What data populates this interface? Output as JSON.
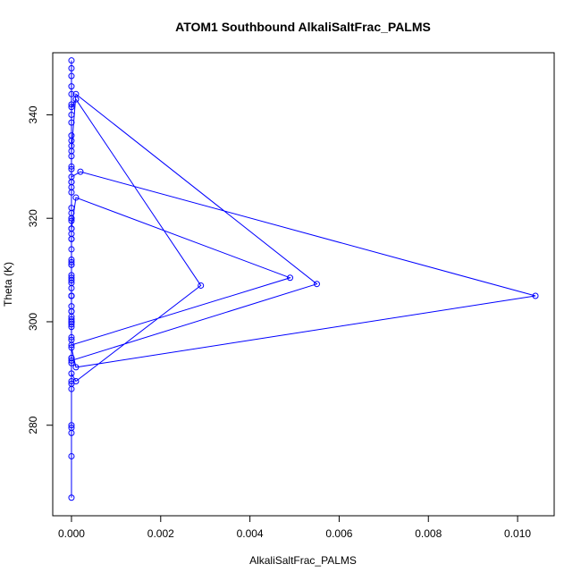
{
  "chart_data": {
    "type": "line",
    "title": "ATOM1 Southbound AlkaliSaltFrac_PALMS",
    "xlabel": "AlkaliSaltFrac_PALMS",
    "ylabel": "Theta (K)",
    "xlim": [
      -0.00042,
      0.01082
    ],
    "ylim": [
      262.5,
      352.0
    ],
    "xticks": [
      0.0,
      0.002,
      0.004,
      0.006,
      0.008,
      0.01
    ],
    "xtick_labels": [
      "0.000",
      "0.002",
      "0.004",
      "0.006",
      "0.008",
      "0.010"
    ],
    "yticks": [
      280,
      300,
      320,
      340
    ],
    "ytick_labels": [
      "280",
      "300",
      "320",
      "340"
    ],
    "grid": false,
    "marker": "open-circle",
    "color": "#0000ff",
    "series": [
      {
        "x": [
          0,
          0,
          0,
          0,
          0,
          0,
          0,
          0,
          0,
          0,
          0,
          0,
          0,
          0,
          0,
          0,
          0,
          0,
          0,
          0,
          0,
          0,
          0,
          0,
          0,
          0,
          0,
          0,
          0,
          0.0001,
          0.0029,
          0.0001,
          0,
          0,
          0,
          0,
          0,
          0,
          0,
          0,
          0.0001,
          0.0049,
          0,
          0,
          0,
          0,
          0,
          0.0001,
          0.0055,
          0,
          0,
          0,
          0,
          0,
          0,
          0,
          0,
          0.0002,
          0.0104,
          0.0001,
          0,
          0,
          0,
          0,
          0,
          0,
          0,
          0,
          0,
          0,
          0,
          0,
          0,
          0,
          0,
          0,
          0,
          0,
          0,
          0,
          0
        ],
        "y": [
          266.0,
          274.0,
          278.5,
          279.5,
          280.0,
          287.0,
          288.0,
          288.5,
          292.0,
          293.0,
          296.5,
          297.0,
          299.5,
          300.5,
          301.0,
          303.0,
          305.0,
          306.5,
          307.5,
          308.5,
          311.5,
          314.0,
          316.0,
          318.0,
          319.5,
          322.0,
          327.0,
          329.5,
          341.5,
          343.0,
          307.0,
          288.5,
          290.0,
          293.0,
          299.0,
          302.0,
          305.0,
          308.0,
          312.0,
          318.0,
          324.0,
          308.5,
          295.5,
          300.0,
          309.0,
          320.0,
          333.0,
          344.0,
          307.3,
          292.5,
          300.0,
          311.0,
          317.0,
          321.0,
          326.0,
          327.0,
          328.0,
          329.0,
          305.0,
          291.2,
          295.0,
          300.0,
          302.0,
          305.0,
          311.0,
          316.0,
          320.0,
          325.0,
          330.0,
          332.0,
          334.0,
          335.0,
          336.0,
          338.5,
          340.0,
          342.0,
          344.0,
          345.5,
          347.5,
          349.0,
          350.5
        ]
      }
    ]
  }
}
